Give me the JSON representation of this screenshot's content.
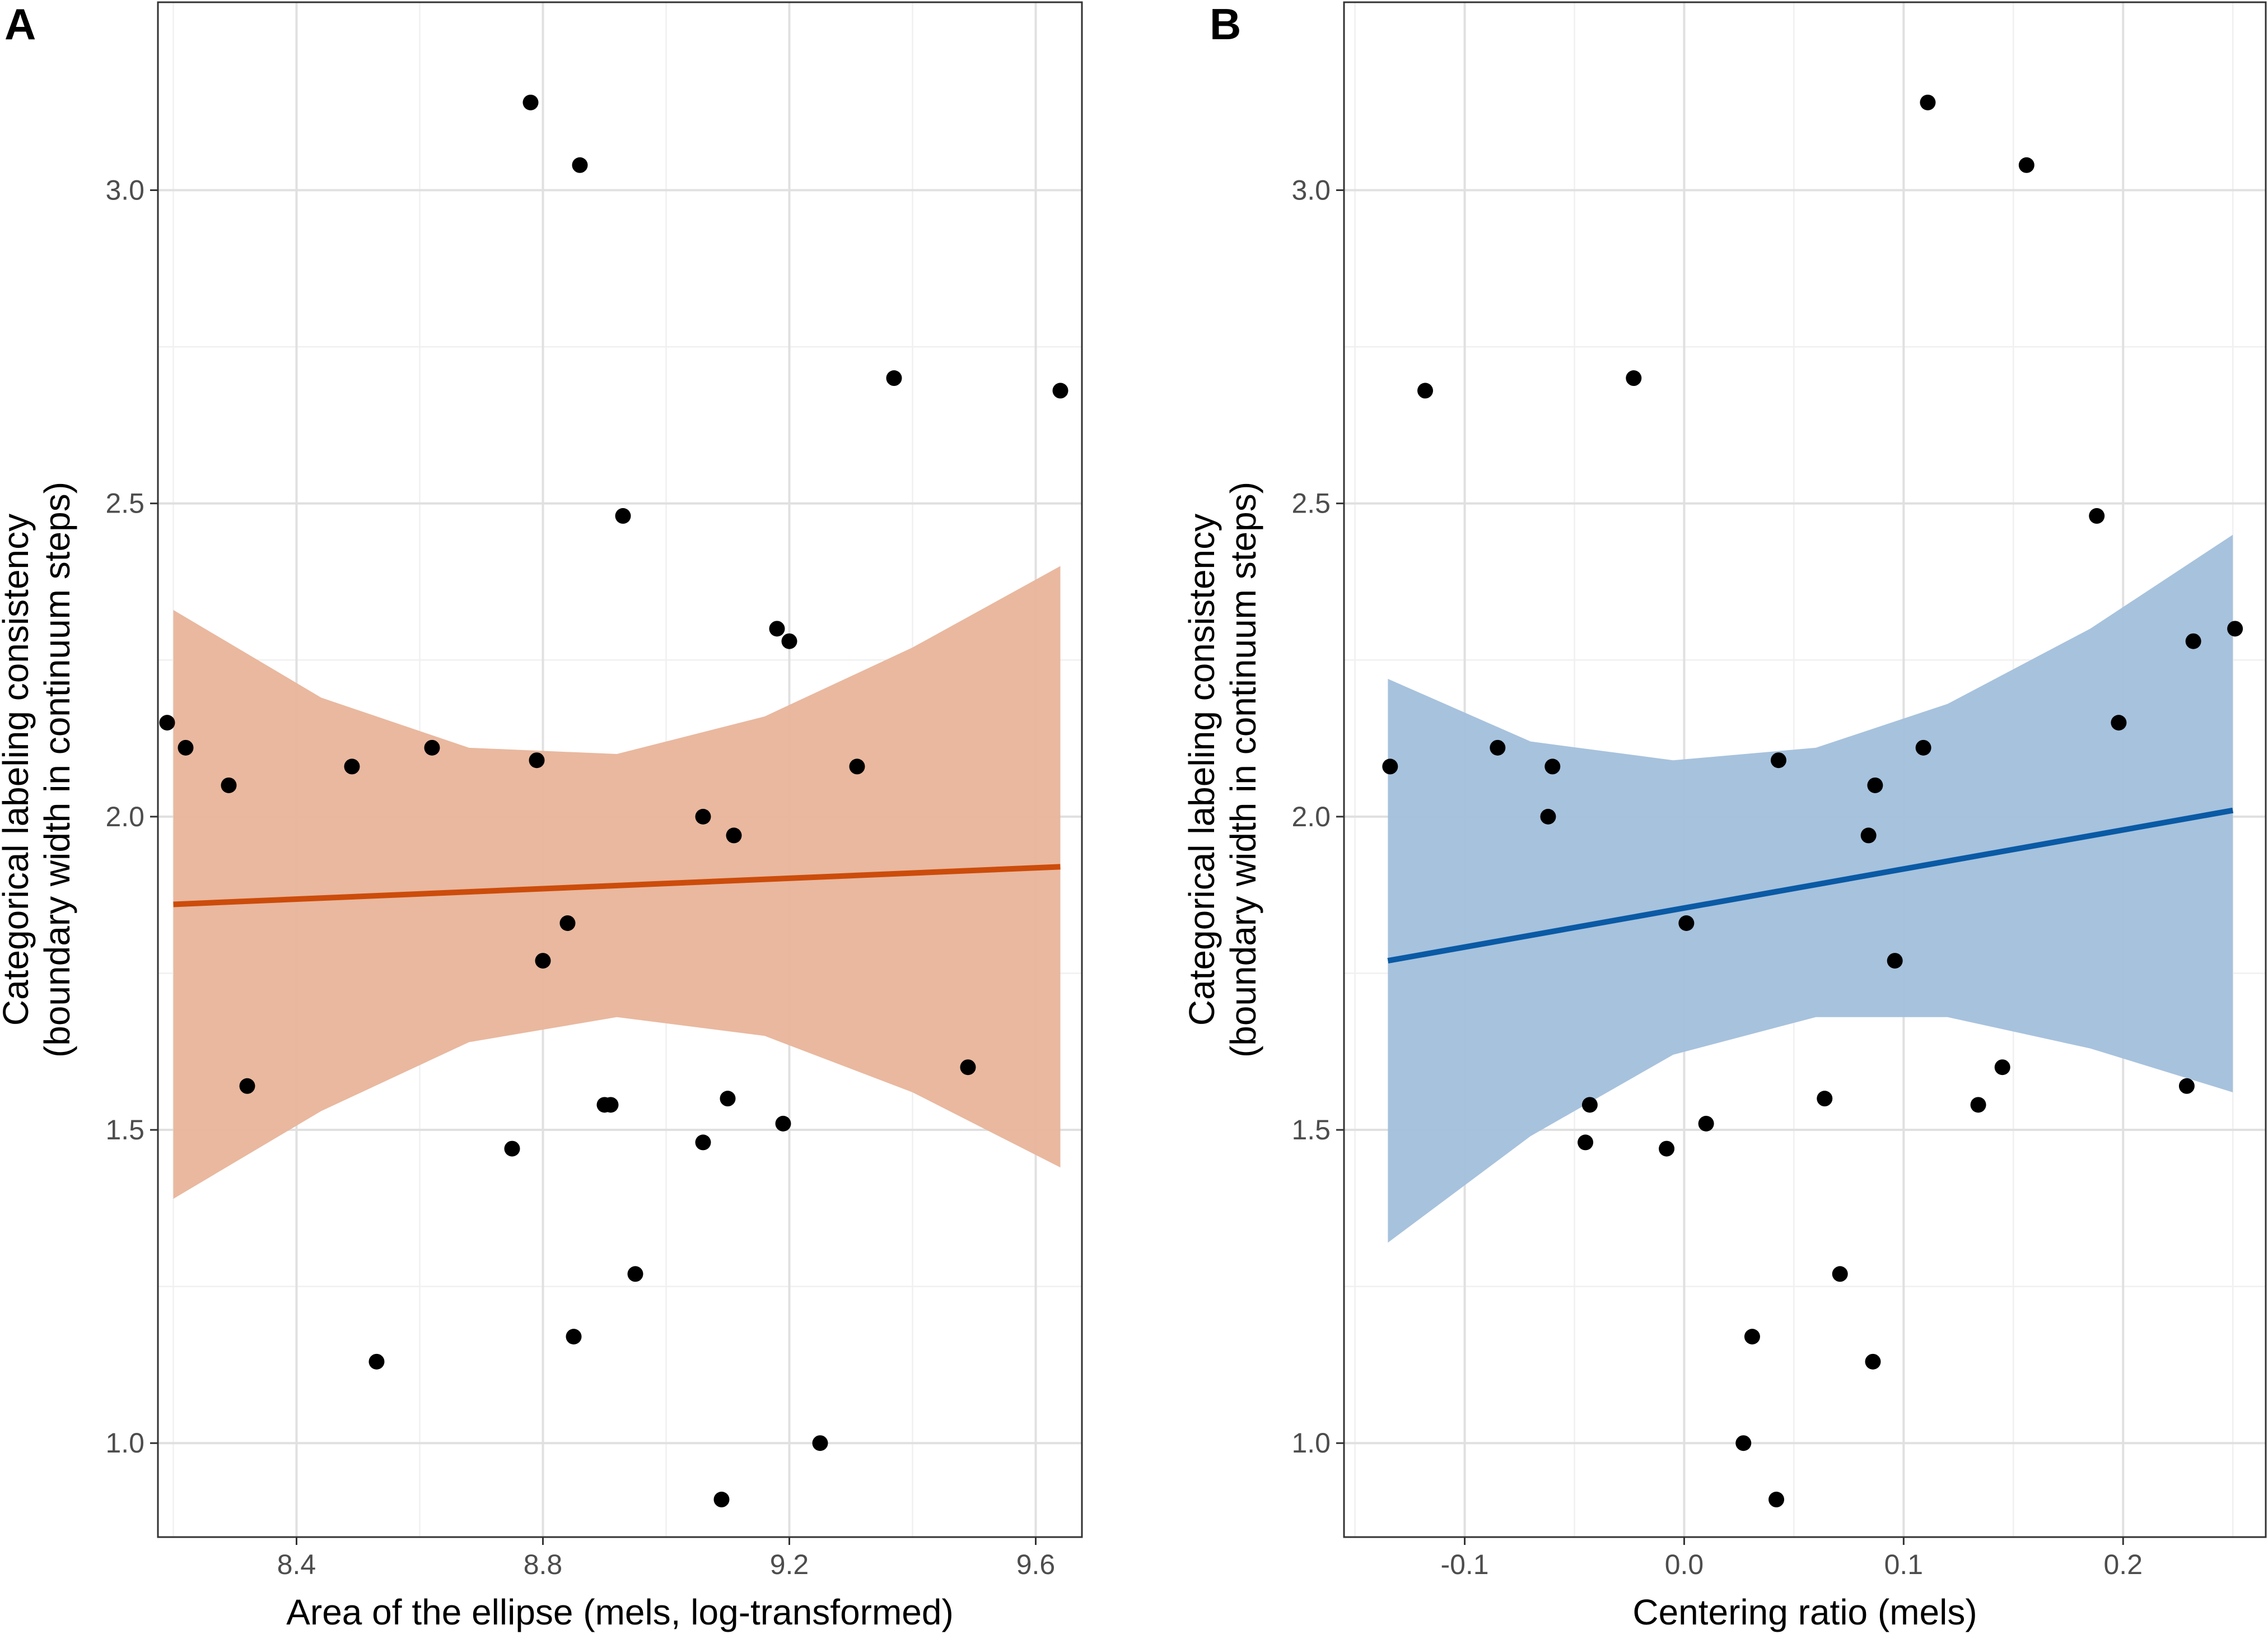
{
  "chart_data": [
    {
      "panel_label": "A",
      "type": "scatter",
      "xlabel": "Area of the ellipse (mels, log-transformed)",
      "ylabel_line1": "Categorical labeling consistency",
      "ylabel_line2": "(boundary width in continuum steps)",
      "xlim": [
        8.175,
        9.675
      ],
      "ylim": [
        0.85,
        3.3
      ],
      "xticks": [
        8.4,
        8.8,
        9.2,
        9.6
      ],
      "xtick_labels": [
        "8.4",
        "8.8",
        "9.2",
        "9.6"
      ],
      "xminor": [
        8.2,
        8.6,
        9.0,
        9.4
      ],
      "yticks": [
        1.0,
        1.5,
        2.0,
        2.5,
        3.0
      ],
      "ytick_labels": [
        "1.0",
        "1.5",
        "2.0",
        "2.5",
        "3.0"
      ],
      "yminor": [
        1.25,
        1.75,
        2.25,
        2.75
      ],
      "grid": true,
      "line_color": "#cc4c0b",
      "band_color": "#e8b49a",
      "fit_line": {
        "x": [
          8.2,
          9.64
        ],
        "y": [
          1.86,
          1.92
        ]
      },
      "ci_band": {
        "x": [
          8.2,
          8.44,
          8.68,
          8.92,
          9.16,
          9.4,
          9.64
        ],
        "lower": [
          1.39,
          1.53,
          1.64,
          1.68,
          1.65,
          1.56,
          1.44
        ],
        "upper": [
          2.33,
          2.19,
          2.11,
          2.1,
          2.16,
          2.27,
          2.4
        ]
      },
      "points": [
        {
          "x": 8.19,
          "y": 2.15
        },
        {
          "x": 8.22,
          "y": 2.11
        },
        {
          "x": 8.29,
          "y": 2.05
        },
        {
          "x": 8.32,
          "y": 1.57
        },
        {
          "x": 8.49,
          "y": 2.08
        },
        {
          "x": 8.53,
          "y": 1.13
        },
        {
          "x": 8.62,
          "y": 2.11
        },
        {
          "x": 8.75,
          "y": 1.47
        },
        {
          "x": 8.78,
          "y": 3.14
        },
        {
          "x": 8.79,
          "y": 2.09
        },
        {
          "x": 8.8,
          "y": 1.77
        },
        {
          "x": 8.84,
          "y": 1.83
        },
        {
          "x": 8.85,
          "y": 1.17
        },
        {
          "x": 8.86,
          "y": 3.04
        },
        {
          "x": 8.9,
          "y": 1.54
        },
        {
          "x": 8.91,
          "y": 1.54
        },
        {
          "x": 8.93,
          "y": 2.48
        },
        {
          "x": 8.95,
          "y": 1.27
        },
        {
          "x": 9.06,
          "y": 2.0
        },
        {
          "x": 9.06,
          "y": 1.48
        },
        {
          "x": 9.09,
          "y": 0.91
        },
        {
          "x": 9.1,
          "y": 1.55
        },
        {
          "x": 9.11,
          "y": 1.97
        },
        {
          "x": 9.18,
          "y": 2.3
        },
        {
          "x": 9.19,
          "y": 1.51
        },
        {
          "x": 9.2,
          "y": 2.28
        },
        {
          "x": 9.25,
          "y": 1.0
        },
        {
          "x": 9.31,
          "y": 2.08
        },
        {
          "x": 9.37,
          "y": 2.7
        },
        {
          "x": 9.49,
          "y": 1.6
        },
        {
          "x": 9.64,
          "y": 2.68
        }
      ]
    },
    {
      "panel_label": "B",
      "type": "scatter",
      "xlabel": "Centering ratio (mels)",
      "ylabel_line1": "Categorical labeling consistency",
      "ylabel_line2": "(boundary width in continuum steps)",
      "xlim": [
        -0.155,
        0.265
      ],
      "ylim": [
        0.85,
        3.3
      ],
      "xticks": [
        -0.1,
        0.0,
        0.1,
        0.2
      ],
      "xtick_labels": [
        "-0.1",
        "0.0",
        "0.1",
        "0.2"
      ],
      "xminor": [
        -0.15,
        -0.05,
        0.05,
        0.15,
        0.25
      ],
      "yticks": [
        1.0,
        1.5,
        2.0,
        2.5,
        3.0
      ],
      "ytick_labels": [
        "1.0",
        "1.5",
        "2.0",
        "2.5",
        "3.0"
      ],
      "yminor": [
        1.25,
        1.75,
        2.25,
        2.75
      ],
      "grid": true,
      "line_color": "#0a5aa5",
      "band_color": "#a2bfdb",
      "fit_line": {
        "x": [
          -0.135,
          0.25
        ],
        "y": [
          1.77,
          2.01
        ]
      },
      "ci_band": {
        "x": [
          -0.135,
          -0.07,
          -0.005,
          0.06,
          0.12,
          0.185,
          0.25
        ],
        "lower": [
          1.32,
          1.49,
          1.62,
          1.68,
          1.68,
          1.63,
          1.56
        ],
        "upper": [
          2.22,
          2.12,
          2.09,
          2.11,
          2.18,
          2.3,
          2.45
        ]
      },
      "points": [
        {
          "x": -0.134,
          "y": 2.08
        },
        {
          "x": -0.118,
          "y": 2.68
        },
        {
          "x": -0.085,
          "y": 2.11
        },
        {
          "x": -0.062,
          "y": 2.0
        },
        {
          "x": -0.06,
          "y": 2.08
        },
        {
          "x": -0.045,
          "y": 1.48
        },
        {
          "x": -0.043,
          "y": 1.54
        },
        {
          "x": -0.023,
          "y": 2.7
        },
        {
          "x": -0.008,
          "y": 1.47
        },
        {
          "x": 0.001,
          "y": 1.83
        },
        {
          "x": 0.01,
          "y": 1.51
        },
        {
          "x": 0.027,
          "y": 1.0
        },
        {
          "x": 0.031,
          "y": 1.17
        },
        {
          "x": 0.042,
          "y": 0.91
        },
        {
          "x": 0.043,
          "y": 2.09
        },
        {
          "x": 0.064,
          "y": 1.55
        },
        {
          "x": 0.071,
          "y": 1.27
        },
        {
          "x": 0.084,
          "y": 1.97
        },
        {
          "x": 0.086,
          "y": 1.13
        },
        {
          "x": 0.087,
          "y": 2.05
        },
        {
          "x": 0.096,
          "y": 1.77
        },
        {
          "x": 0.109,
          "y": 2.11
        },
        {
          "x": 0.111,
          "y": 3.14
        },
        {
          "x": 0.134,
          "y": 1.54
        },
        {
          "x": 0.145,
          "y": 1.6
        },
        {
          "x": 0.156,
          "y": 3.04
        },
        {
          "x": 0.188,
          "y": 2.48
        },
        {
          "x": 0.198,
          "y": 2.15
        },
        {
          "x": 0.229,
          "y": 1.57
        },
        {
          "x": 0.232,
          "y": 2.28
        },
        {
          "x": 0.251,
          "y": 2.3
        }
      ]
    }
  ]
}
